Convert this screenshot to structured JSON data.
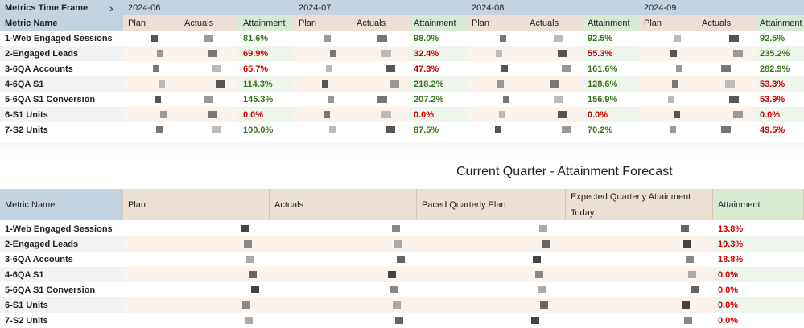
{
  "table1": {
    "corner_label": "Metrics Time Frame",
    "corner_arrow": "›",
    "metric_header": "Metric Name",
    "months": [
      "2024-06",
      "2024-07",
      "2024-08",
      "2024-09"
    ],
    "col_plan": "Plan",
    "col_actuals": "Actuals",
    "col_attainment": "Attainment",
    "rows": [
      {
        "metric": "1-Web Engaged Sessions",
        "att": [
          "81.6%",
          "98.0%",
          "92.5%",
          "92.5%"
        ],
        "status": [
          "green",
          "green",
          "green",
          "green"
        ]
      },
      {
        "metric": "2-Engaged Leads",
        "att": [
          "69.9%",
          "32.4%",
          "55.3%",
          "235.2%"
        ],
        "status": [
          "red",
          "red",
          "red",
          "green"
        ]
      },
      {
        "metric": "3-6QA Accounts",
        "att": [
          "65.7%",
          "47.3%",
          "161.6%",
          "282.9%"
        ],
        "status": [
          "red",
          "red",
          "green",
          "green"
        ]
      },
      {
        "metric": "4-6QA S1",
        "att": [
          "114.3%",
          "218.2%",
          "128.6%",
          "53.3%"
        ],
        "status": [
          "green",
          "green",
          "green",
          "red"
        ]
      },
      {
        "metric": "5-6QA S1 Conversion",
        "att": [
          "145.3%",
          "207.2%",
          "156.9%",
          "53.9%"
        ],
        "status": [
          "green",
          "green",
          "green",
          "red"
        ]
      },
      {
        "metric": "6-S1 Units",
        "att": [
          "0.0%",
          "0.0%",
          "0.0%",
          "0.0%"
        ],
        "status": [
          "red",
          "red",
          "red",
          "red"
        ]
      },
      {
        "metric": "7-S2 Units",
        "att": [
          "100.0%",
          "87.5%",
          "70.2%",
          "49.5%"
        ],
        "status": [
          "green",
          "green",
          "green",
          "red"
        ]
      }
    ]
  },
  "table2": {
    "title": "Current Quarter - Attainment Forecast",
    "headers": {
      "metric": "Metric Name",
      "plan": "Plan",
      "actuals": "Actuals",
      "paced": "Paced Quarterly Plan",
      "expected_line1": "Expected Quarterly Attainment",
      "expected_line2": "Today",
      "attainment": "Attainment"
    },
    "rows": [
      {
        "metric": "1-Web Engaged Sessions",
        "att": "13.8%"
      },
      {
        "metric": "2-Engaged Leads",
        "att": "19.3%"
      },
      {
        "metric": "3-6QA Accounts",
        "att": "18.8%"
      },
      {
        "metric": "4-6QA S1",
        "att": "0.0%"
      },
      {
        "metric": "5-6QA S1 Conversion",
        "att": "0.0%"
      },
      {
        "metric": "6-S1 Units",
        "att": "0.0%"
      },
      {
        "metric": "7-S2 Units",
        "att": "0.0%"
      }
    ],
    "status_color": "#cc0000"
  },
  "colors": {
    "header_blue": "#c3d3e0",
    "header_tan": "#ecdfd3",
    "header_green": "#d9ead3",
    "good": "#38761d",
    "bad": "#cc0000"
  }
}
